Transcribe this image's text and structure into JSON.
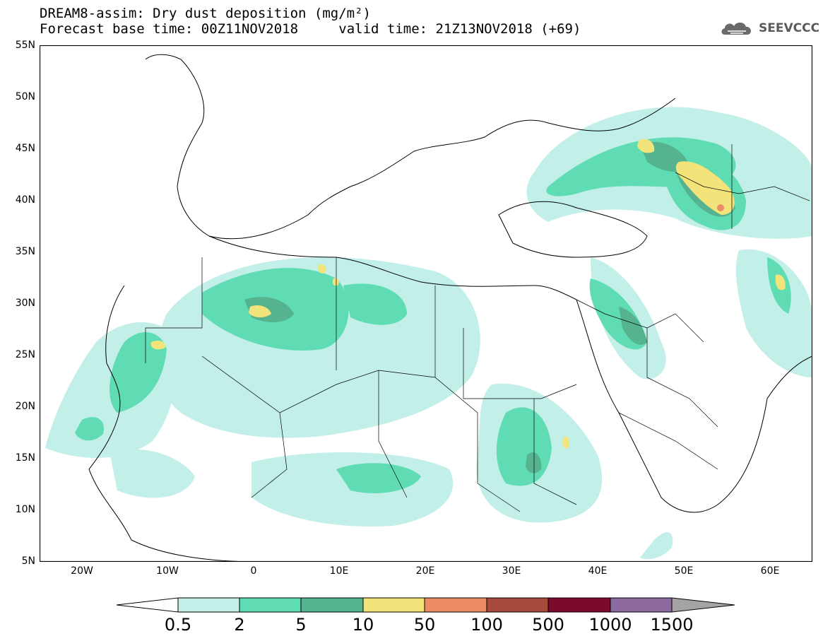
{
  "header": {
    "title": "DREAM8-assim: Dry dust deposition (mg/m²)",
    "subtitle_base": "Forecast base time: 00Z11NOV2018",
    "subtitle_valid": "valid time: 21Z13NOV2018 (+69)",
    "logo_text": "SEEVCCC"
  },
  "map": {
    "lat_labels": [
      "55N",
      "50N",
      "45N",
      "40N",
      "35N",
      "30N",
      "25N",
      "20N",
      "15N",
      "10N",
      "5N"
    ],
    "lon_labels": [
      "20W",
      "10W",
      "0",
      "10E",
      "20E",
      "30E",
      "40E",
      "50E",
      "60E"
    ],
    "colors": {
      "level_0_5": "#c2efe8",
      "level_2": "#5fdcb3",
      "level_5": "#55b48f",
      "level_10": "#f2e47a",
      "level_50": "#eb8c66",
      "level_100": "#a84a3c",
      "level_500": "#7c0a2a",
      "level_1000": "#8c6aa0",
      "level_1500": "#a4a4a4"
    }
  },
  "colorbar": {
    "labels": [
      "0.5",
      "2",
      "5",
      "10",
      "50",
      "100",
      "500",
      "1000",
      "1500"
    ]
  }
}
